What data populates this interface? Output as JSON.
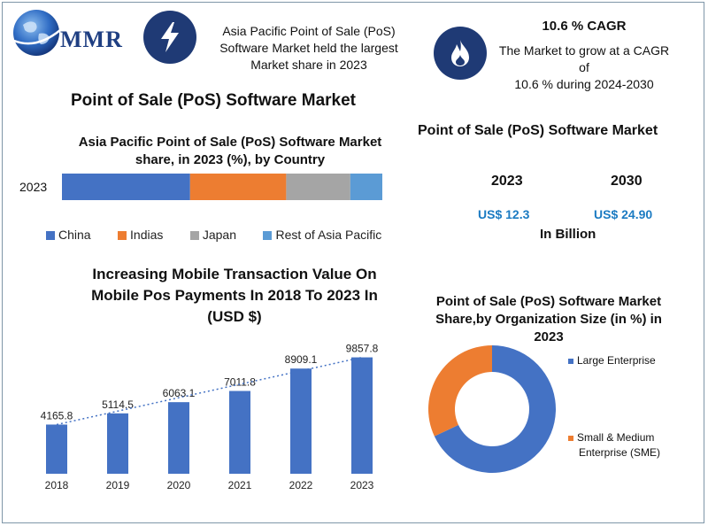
{
  "brand": {
    "logo_text": "MMR"
  },
  "header": {
    "highlight_text_line1": "Asia Pacific Point of Sale (PoS)",
    "highlight_text_line2": "Software Market held the largest",
    "highlight_text_line3": "Market share in 2023",
    "cagr_title": "10.6 % CAGR",
    "cagr_line1": "The Market to grow at a CAGR of",
    "cagr_line2": "10.6 % during 2024-2030"
  },
  "main_title": "Point of Sale (PoS) Software Market",
  "market_size": {
    "title": "Point of Sale (PoS) Software Market",
    "years": [
      "2023",
      "2030"
    ],
    "values": [
      "US$ 12.3",
      "US$ 24.90"
    ],
    "unit": "In Billion"
  },
  "colors": {
    "china": "#4472c4",
    "indias": "#ed7d31",
    "japan": "#a5a5a5",
    "rest": "#5b9bd5",
    "bar": "#4472c4",
    "donut_large": "#4472c4",
    "donut_sme": "#ed7d31",
    "navy": "#1f3a75"
  },
  "chart_data": [
    {
      "type": "bar",
      "orientation": "horizontal-stacked",
      "title_line1": "Asia Pacific Point of Sale (PoS) Software  Market",
      "title_line2": "share, in 2023 (%), by Country",
      "categories": [
        "2023"
      ],
      "series": [
        {
          "name": "China",
          "values": [
            40
          ]
        },
        {
          "name": "Indias",
          "values": [
            30
          ]
        },
        {
          "name": "Japan",
          "values": [
            20
          ]
        },
        {
          "name": "Rest of Asia Pacific",
          "values": [
            10
          ]
        }
      ],
      "xlim": [
        0,
        100
      ],
      "legend": "bottom"
    },
    {
      "type": "bar",
      "title_line1": "Increasing Mobile Transaction Value On",
      "title_line2": "Mobile Pos Payments In 2018 To 2023 In",
      "title_line3": "(USD $)",
      "categories": [
        "2018",
        "2019",
        "2020",
        "2021",
        "2022",
        "2023"
      ],
      "values": [
        4165.8,
        5114.5,
        6063.1,
        7011.8,
        8909.1,
        9857.8
      ],
      "data_labels": [
        "4165.8",
        "5114.5",
        "6063.1",
        "7011.8",
        "8909.1",
        "9857.8"
      ],
      "trendline": "linear dotted",
      "ylim": [
        0,
        10500
      ]
    },
    {
      "type": "pie",
      "variant": "donut",
      "title_line1": "Point of Sale (PoS) Software  Market",
      "title_line2": "Share,by Organization Size (in %) in",
      "title_line3": "2023",
      "labels": [
        "Large Enterprise",
        "Small & Medium Enterprise (SME)"
      ],
      "legend_sme_line1": "Small & Medium",
      "legend_sme_line2": "Enterprise (SME)",
      "values": [
        68,
        32
      ],
      "legend": "right"
    }
  ]
}
